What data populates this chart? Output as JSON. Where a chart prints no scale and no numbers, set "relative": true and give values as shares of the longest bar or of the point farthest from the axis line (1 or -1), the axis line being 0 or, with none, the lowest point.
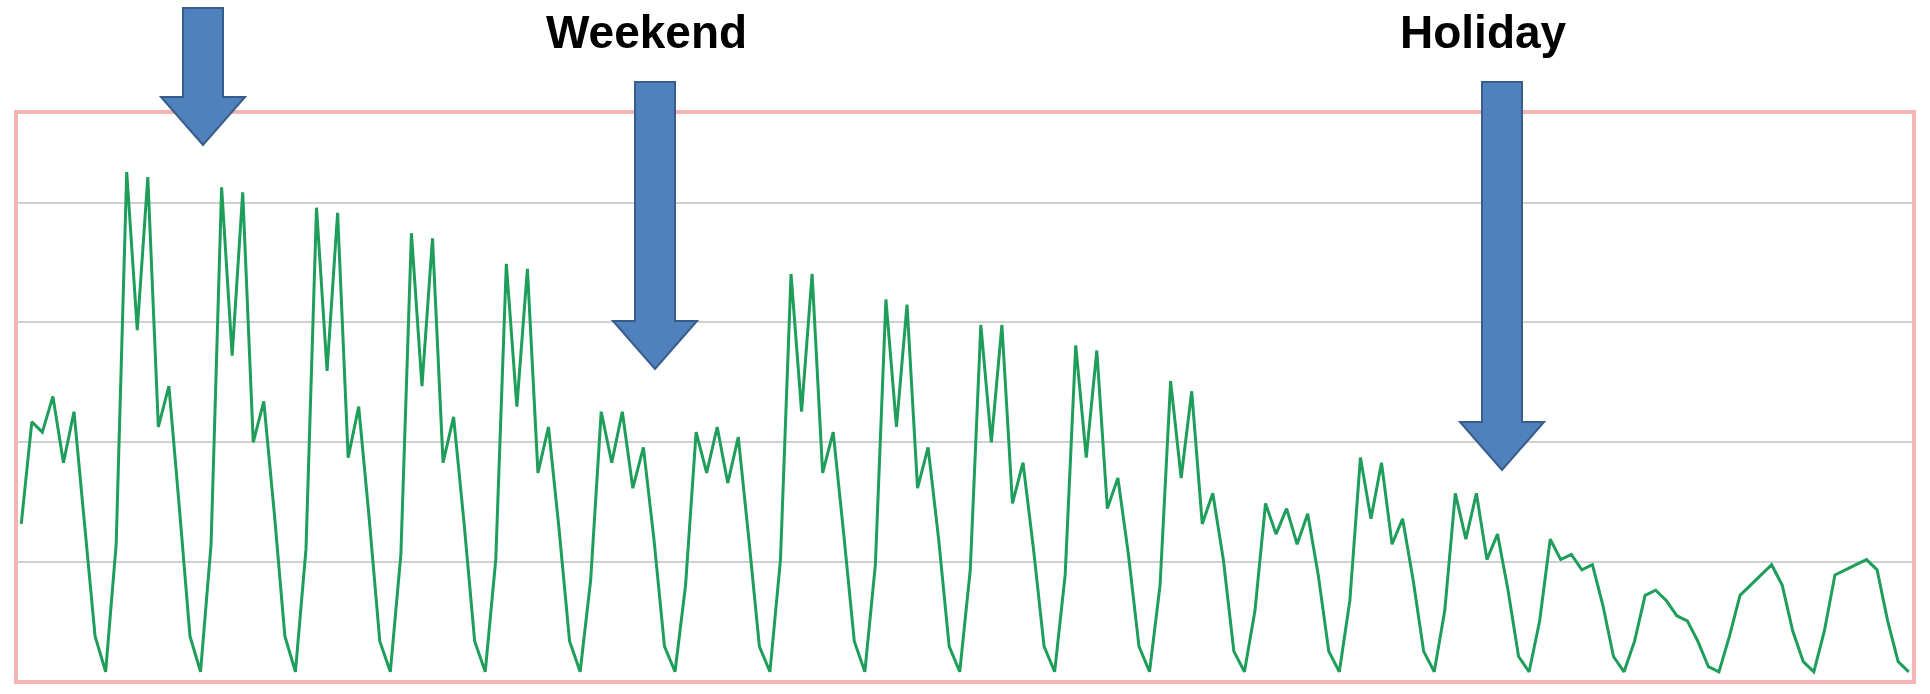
{
  "chart_data": {
    "type": "line",
    "relative": true,
    "grid": "y",
    "marker": "none",
    "line_style": "solid",
    "annotations": [
      "Weekend",
      "Holiday"
    ],
    "categories": [
      null,
      null,
      null,
      null,
      null,
      null,
      null,
      null,
      null,
      null,
      null,
      null,
      null,
      null,
      null,
      null,
      null,
      null,
      null,
      null,
      null,
      null,
      null,
      null,
      null,
      null,
      null,
      null,
      null,
      null,
      null,
      null,
      null,
      null,
      null,
      null,
      null,
      null,
      null,
      null,
      null,
      null,
      null,
      null,
      null,
      null,
      null,
      null,
      null,
      null,
      null,
      null,
      null,
      null,
      null,
      null,
      null,
      null,
      null,
      null,
      null,
      null,
      null,
      null,
      null,
      null,
      null,
      null,
      null,
      null,
      null,
      null,
      null,
      null,
      null,
      null,
      null,
      null,
      null,
      null,
      null,
      null,
      null,
      null,
      null,
      null,
      null,
      null,
      null,
      null,
      null,
      null,
      null,
      null,
      null,
      null,
      null,
      null,
      null,
      null,
      null,
      null,
      null,
      null,
      null,
      null,
      null,
      null,
      null,
      null,
      null,
      null,
      null,
      null,
      null,
      null,
      null,
      null,
      null,
      null,
      null,
      null,
      null,
      null,
      null,
      null,
      null,
      null,
      null,
      null,
      null,
      null,
      null,
      null,
      null,
      null,
      null,
      null,
      null,
      null,
      null,
      null,
      null,
      null,
      null,
      null,
      null,
      null,
      null,
      null,
      null,
      null,
      null,
      null,
      null,
      null,
      null,
      null,
      null,
      null,
      null,
      null,
      null,
      null,
      null,
      null,
      null,
      null,
      null,
      null,
      null,
      null,
      null,
      null,
      null,
      null,
      null,
      null,
      null,
      null
    ],
    "series": [
      {
        "color": "#1e9e5a",
        "values": [
          0.31,
          0.51,
          0.49,
          0.56,
          0.43,
          0.53,
          0.31,
          0.09,
          0.02,
          0.27,
          1.0,
          0.69,
          0.99,
          0.5,
          0.58,
          0.34,
          0.09,
          0.02,
          0.27,
          0.97,
          0.64,
          0.96,
          0.47,
          0.55,
          0.33,
          0.09,
          0.02,
          0.26,
          0.93,
          0.61,
          0.92,
          0.44,
          0.54,
          0.32,
          0.08,
          0.02,
          0.25,
          0.88,
          0.58,
          0.87,
          0.43,
          0.52,
          0.31,
          0.08,
          0.02,
          0.24,
          0.82,
          0.54,
          0.81,
          0.41,
          0.5,
          0.3,
          0.08,
          0.02,
          0.2,
          0.53,
          0.43,
          0.53,
          0.38,
          0.46,
          0.28,
          0.07,
          0.02,
          0.19,
          0.49,
          0.41,
          0.5,
          0.39,
          0.48,
          0.28,
          0.07,
          0.02,
          0.24,
          0.8,
          0.53,
          0.8,
          0.41,
          0.49,
          0.29,
          0.08,
          0.02,
          0.23,
          0.75,
          0.5,
          0.74,
          0.38,
          0.46,
          0.28,
          0.07,
          0.02,
          0.22,
          0.7,
          0.47,
          0.7,
          0.35,
          0.43,
          0.26,
          0.07,
          0.02,
          0.21,
          0.66,
          0.44,
          0.65,
          0.34,
          0.4,
          0.25,
          0.07,
          0.02,
          0.19,
          0.59,
          0.4,
          0.57,
          0.31,
          0.37,
          0.24,
          0.06,
          0.02,
          0.14,
          0.35,
          0.29,
          0.34,
          0.27,
          0.33,
          0.21,
          0.06,
          0.02,
          0.16,
          0.44,
          0.32,
          0.43,
          0.27,
          0.32,
          0.2,
          0.06,
          0.02,
          0.14,
          0.37,
          0.28,
          0.37,
          0.24,
          0.29,
          0.18,
          0.05,
          0.02,
          0.12,
          0.28,
          0.24,
          0.25,
          0.22,
          0.23,
          0.15,
          0.05,
          0.02,
          0.08,
          0.17,
          0.18,
          0.16,
          0.13,
          0.12,
          0.08,
          0.03,
          0.02,
          0.09,
          0.17,
          0.19,
          0.21,
          0.23,
          0.19,
          0.1,
          0.04,
          0.02,
          0.1,
          0.21,
          0.22,
          0.23,
          0.24,
          0.22,
          0.12,
          0.04,
          0.02
        ]
      }
    ]
  }
}
